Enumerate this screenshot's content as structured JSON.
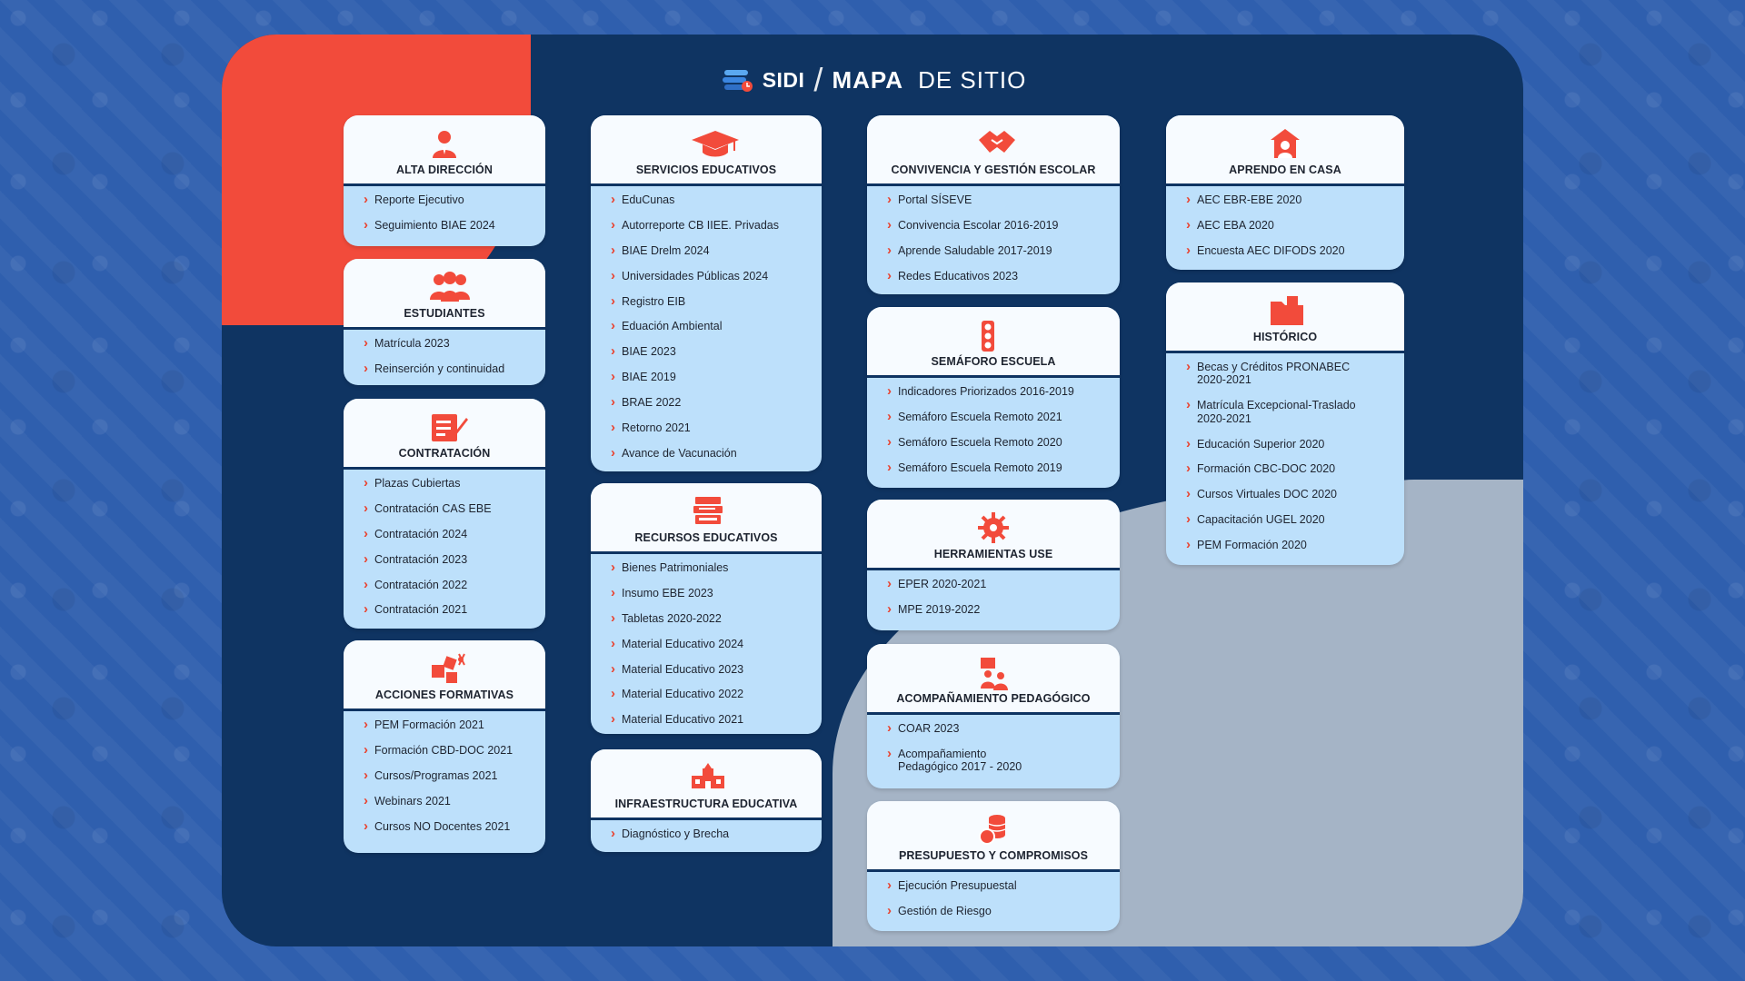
{
  "header": {
    "brand": "SIDI",
    "title_strong": "MAPA",
    "title_light": "DE SITIO"
  },
  "colors": {
    "accent": "#f24b3b",
    "panel": "#0f3462",
    "card_body": "#bde0fb",
    "card_head": "#f7fbff",
    "gray_blob": "#a5b4c6",
    "background": "#2f5fae"
  },
  "sections": {
    "alta_direccion": {
      "icon": "executive-person-icon",
      "title": "ALTA DIRECCIÓN",
      "items": [
        "Reporte Ejecutivo",
        "Seguimiento BIAE 2024"
      ]
    },
    "estudiantes": {
      "icon": "students-group-icon",
      "title": "ESTUDIANTES",
      "items": [
        "Matrícula 2023",
        "Reinserción y continuidad"
      ]
    },
    "contratacion": {
      "icon": "contract-sign-icon",
      "title": "CONTRATACIÓN",
      "items": [
        "Plazas Cubiertas",
        "Contratación CAS EBE",
        "Contratación 2024",
        "Contratación 2023",
        "Contratación 2022",
        "Contratación 2021"
      ]
    },
    "acciones_formativas": {
      "icon": "puzzle-icon",
      "title": "ACCIONES FORMATIVAS",
      "items": [
        "PEM Formación 2021",
        "Formación CBD-DOC 2021",
        "Cursos/Programas 2021",
        "Webinars 2021",
        "Cursos NO Docentes 2021"
      ]
    },
    "servicios_educativos": {
      "icon": "graduation-cap-icon",
      "title": "SERVICIOS EDUCATIVOS",
      "items": [
        "EduCunas",
        "Autorreporte CB IIEE. Privadas",
        "BIAE Drelm 2024",
        "Universidades Públicas 2024",
        "Registro EIB",
        "Eduación Ambiental",
        "BIAE 2023",
        "BIAE 2019",
        "BRAE 2022",
        "Retorno 2021",
        "Avance de Vacunación"
      ]
    },
    "recursos_educativos": {
      "icon": "books-stack-icon",
      "title": "RECURSOS EDUCATIVOS",
      "items": [
        "Bienes Patrimoniales",
        "Insumo EBE 2023",
        "Tabletas 2020-2022",
        "Material Educativo 2024",
        "Material Educativo 2023",
        "Material Educativo 2022",
        "Material Educativo 2021"
      ]
    },
    "infraestructura_educativa": {
      "icon": "school-building-icon",
      "title": "INFRAESTRUCTURA EDUCATIVA",
      "items": [
        "Diagnóstico y Brecha"
      ]
    },
    "convivencia": {
      "icon": "handshake-icon",
      "title": "CONVIVENCIA Y GESTIÓN ESCOLAR",
      "items": [
        "Portal SÍSEVE",
        "Convivencia Escolar 2016-2019",
        "Aprende Saludable 2017-2019",
        "Redes Educativos 2023"
      ]
    },
    "semaforo_escuela": {
      "icon": "traffic-light-icon",
      "title": "SEMÁFORO ESCUELA",
      "items": [
        "Indicadores Priorizados 2016-2019",
        "Semáforo Escuela Remoto 2021",
        "Semáforo Escuela Remoto 2020",
        "Semáforo Escuela Remoto 2019"
      ]
    },
    "herramientas_use": {
      "icon": "gear-icon",
      "title": "HERRAMIENTAS USE",
      "items": [
        "EPER 2020-2021",
        "MPE 2019-2022"
      ]
    },
    "acompanamiento": {
      "icon": "teacher-board-icon",
      "title": "ACOMPAÑAMIENTO PEDAGÓGICO",
      "items": [
        "COAR 2023",
        "Acompañamiento Pedagógico 2017 - 2020"
      ]
    },
    "presupuesto": {
      "icon": "coins-stack-icon",
      "title": "PRESUPUESTO Y COMPROMISOS",
      "items": [
        "Ejecución Presupuestal",
        "Gestión de Riesgo"
      ]
    },
    "aprendo_en_casa": {
      "icon": "home-school-icon",
      "title": "APRENDO EN CASA",
      "items": [
        "AEC EBR-EBE 2020",
        "AEC EBA 2020",
        "Encuesta AEC DIFODS 2020"
      ]
    },
    "historico": {
      "icon": "folder-icon",
      "title": "HISTÓRICO",
      "items": [
        "Becas y Créditos PRONABEC 2020-2021",
        "Matrícula Excepcional-Traslado 2020-2021",
        "Educación Superior 2020",
        "Formación CBC-DOC 2020",
        "Cursos Virtuales DOC 2020",
        "Capacitación UGEL 2020",
        "PEM Formación 2020"
      ]
    }
  }
}
